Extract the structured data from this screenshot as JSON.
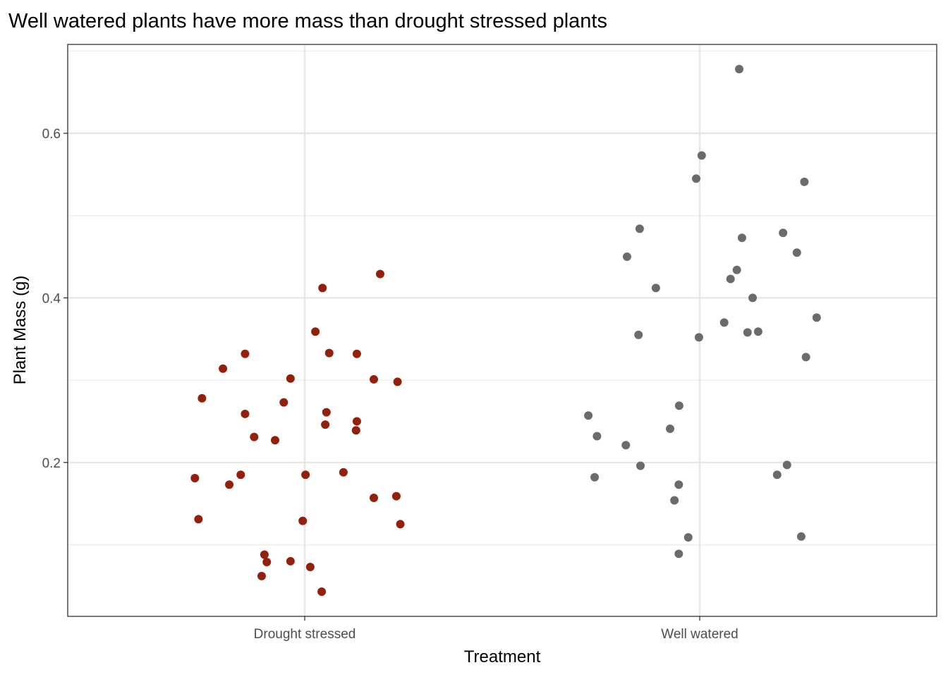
{
  "chart_data": {
    "type": "scatter",
    "title": "Well watered plants have more mass than drought stressed plants",
    "xlabel": "Treatment",
    "ylabel": "Plant Mass (g)",
    "categories": [
      "Drought stressed",
      "Well watered"
    ],
    "ylim": [
      0.013,
      0.708
    ],
    "yticks": [
      0.2,
      0.4,
      0.6
    ],
    "ytick_labels": [
      "0.2",
      "0.4",
      "0.6"
    ],
    "y_minor_gridlines": [
      0.1,
      0.3,
      0.5,
      0.7
    ],
    "grid": true,
    "legend": "none",
    "jitter": true,
    "series": [
      {
        "name": "Drought stressed",
        "color": "#93200A",
        "jitter_offsets": [
          0.191,
          0.045,
          0.027,
          -0.151,
          0.062,
          0.132,
          -0.207,
          -0.036,
          0.175,
          0.235,
          -0.26,
          -0.053,
          -0.151,
          0.055,
          0.052,
          0.132,
          0.13,
          -0.128,
          -0.075,
          -0.278,
          -0.162,
          -0.191,
          0.002,
          0.098,
          0.175,
          0.232,
          -0.269,
          -0.005,
          0.242,
          -0.102,
          -0.096,
          -0.036,
          0.014,
          -0.109,
          0.043
        ],
        "values": [
          0.429,
          0.412,
          0.359,
          0.332,
          0.333,
          0.332,
          0.314,
          0.302,
          0.301,
          0.298,
          0.278,
          0.273,
          0.259,
          0.261,
          0.246,
          0.25,
          0.239,
          0.231,
          0.227,
          0.181,
          0.185,
          0.173,
          0.185,
          0.188,
          0.157,
          0.159,
          0.131,
          0.129,
          0.125,
          0.088,
          0.079,
          0.08,
          0.073,
          0.062,
          0.043
        ]
      },
      {
        "name": "Well watered",
        "color": "#6B6B6B",
        "jitter_offsets": [
          0.1,
          0.005,
          -0.009,
          0.265,
          -0.152,
          0.211,
          0.107,
          -0.184,
          0.246,
          0.094,
          0.078,
          -0.111,
          0.134,
          0.296,
          0.062,
          -0.155,
          -0.002,
          0.121,
          0.148,
          0.269,
          -0.282,
          -0.052,
          -0.075,
          -0.26,
          -0.187,
          -0.15,
          0.221,
          -0.266,
          0.196,
          -0.053,
          -0.064,
          -0.029,
          0.257,
          -0.053
        ],
        "values": [
          0.678,
          0.573,
          0.545,
          0.541,
          0.484,
          0.479,
          0.473,
          0.45,
          0.455,
          0.434,
          0.423,
          0.412,
          0.4,
          0.376,
          0.37,
          0.355,
          0.352,
          0.358,
          0.359,
          0.328,
          0.257,
          0.269,
          0.241,
          0.232,
          0.221,
          0.196,
          0.197,
          0.182,
          0.185,
          0.173,
          0.154,
          0.109,
          0.11,
          0.089
        ]
      }
    ]
  }
}
